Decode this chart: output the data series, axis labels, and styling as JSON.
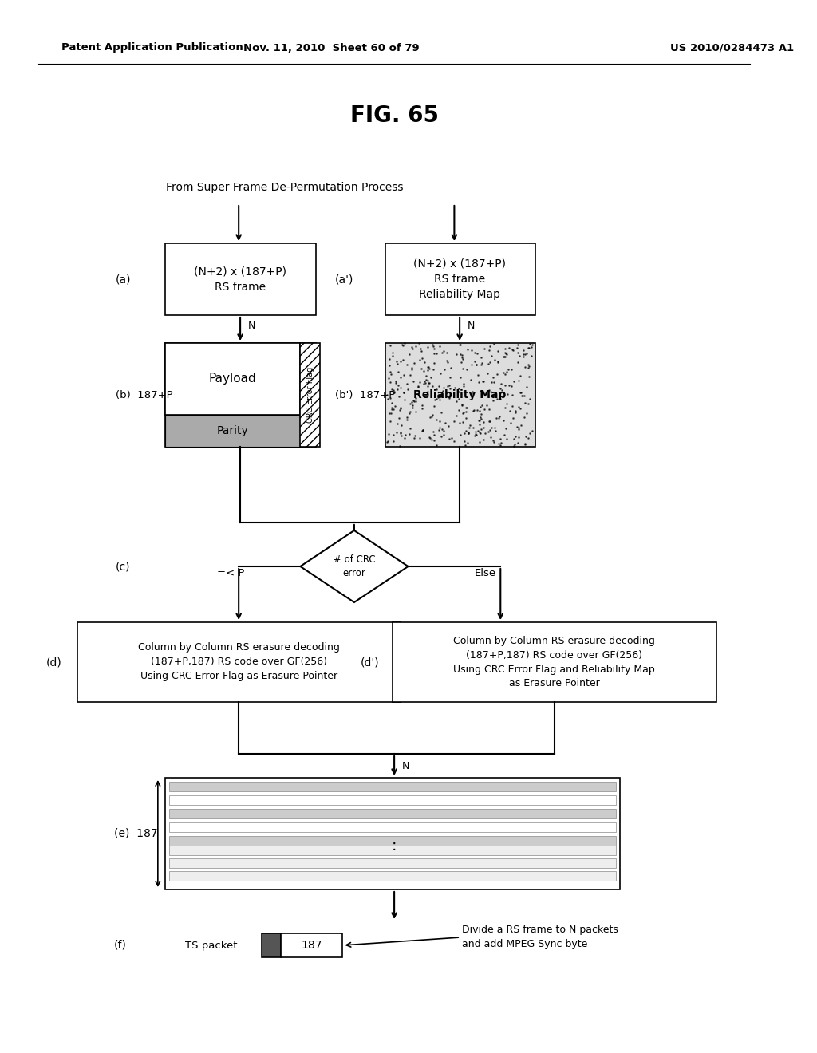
{
  "header_left": "Patent Application Publication",
  "header_mid": "Nov. 11, 2010  Sheet 60 of 79",
  "header_right": "US 2010/0284473 A1",
  "fig_title": "FIG. 65",
  "source_text": "From Super Frame De-Permutation Process",
  "box_a_text": "(N+2) x (187+P)\nRS frame",
  "label_a": "(a)",
  "box_a_prime_text": "(N+2) x (187+P)\nRS frame\nReliability Map",
  "label_a_prime": "(a')",
  "label_b": "(b)  187+P",
  "payload_text": "Payload",
  "parity_text": "Parity",
  "crc_flag_text": "CRC Error Flag",
  "label_b_prime": "(b')  187+P",
  "reliability_map_text": "Reliability Map",
  "label_c": "(c)",
  "diamond_text": "# of CRC\nerror",
  "left_branch_text": "=< P",
  "right_branch_text": "Else",
  "label_d": "(d)",
  "box_d_text": "Column by Column RS erasure decoding\n(187+P,187) RS code over GF(256)\nUsing CRC Error Flag as Erasure Pointer",
  "label_d_prime": "(d')",
  "box_d_prime_text": "Column by Column RS erasure decoding\n(187+P,187) RS code over GF(256)\nUsing CRC Error Flag and Reliability Map\nas Erasure Pointer",
  "label_e": "(e)  187",
  "label_f": "(f)",
  "ts_packet_label": "TS packet",
  "ts_187_label": "187",
  "note_text": "Divide a RS frame to N packets\nand add MPEG Sync byte",
  "bg_color": "#ffffff",
  "text_color": "#000000",
  "box_color": "#ffffff",
  "box_edge": "#000000"
}
